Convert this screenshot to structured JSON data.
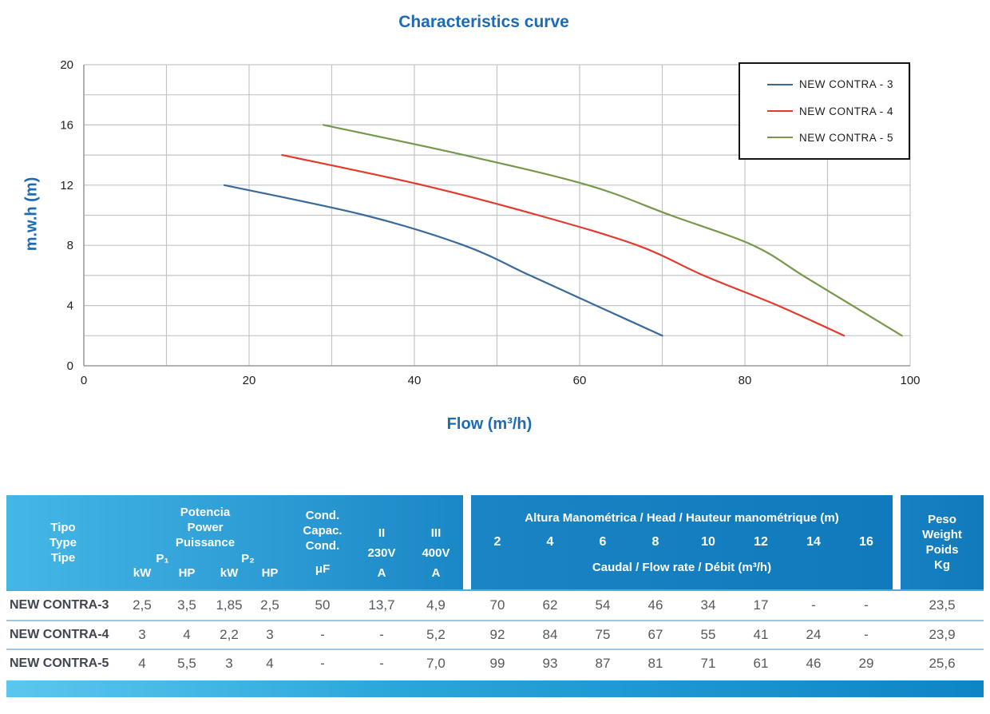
{
  "chart_data": {
    "type": "line",
    "title": "Characteristics curve",
    "xlabel": "Flow (m³/h)",
    "ylabel": "m.w.h (m)",
    "xlim": [
      0,
      100
    ],
    "ylim": [
      0,
      20
    ],
    "x_ticks": [
      0,
      20,
      40,
      60,
      80,
      100
    ],
    "y_ticks": [
      0,
      4,
      8,
      12,
      16,
      20
    ],
    "x_grid_step": 10,
    "y_grid_step": 2,
    "grid": true,
    "legend_position": "top-right",
    "grid_color": "#c2c5c7",
    "axis_color": "#9aa0a3",
    "series": [
      {
        "name": "NEW CONTRA - 3",
        "color": "#3a6a9b",
        "points": [
          [
            17,
            12
          ],
          [
            34,
            10
          ],
          [
            46,
            8
          ],
          [
            54,
            6
          ],
          [
            62,
            4
          ],
          [
            70,
            2
          ]
        ]
      },
      {
        "name": "NEW CONTRA - 4",
        "color": "#e23b2e",
        "points": [
          [
            24,
            14
          ],
          [
            41,
            12
          ],
          [
            55,
            10
          ],
          [
            67,
            8
          ],
          [
            75,
            6
          ],
          [
            84,
            4
          ],
          [
            92,
            2
          ]
        ]
      },
      {
        "name": "NEW CONTRA - 5",
        "color": "#75984a",
        "points": [
          [
            29,
            16
          ],
          [
            46,
            14
          ],
          [
            61,
            12
          ],
          [
            71,
            10
          ],
          [
            81,
            8
          ],
          [
            87,
            6
          ],
          [
            93,
            4
          ],
          [
            99,
            2
          ]
        ]
      }
    ]
  },
  "table": {
    "col_type": {
      "lines": [
        "Tipo",
        "Type",
        "Tipe"
      ]
    },
    "power": {
      "title_lines": [
        "Potencia",
        "Power",
        "Puissance"
      ],
      "p1": "P₁",
      "p2": "P₂",
      "units": [
        "kW",
        "HP",
        "kW",
        "HP"
      ]
    },
    "cond": {
      "title_lines": [
        "Cond.",
        "Capac.",
        "Cond."
      ],
      "unit": "μF"
    },
    "phase2": {
      "lines": [
        "II",
        "230V",
        "A"
      ]
    },
    "phase3": {
      "lines": [
        "III",
        "400V",
        "A"
      ]
    },
    "head": {
      "title": "Altura Manométrica / Head / Hauteur manométrique (m)",
      "values": [
        "2",
        "4",
        "6",
        "8",
        "10",
        "12",
        "14",
        "16"
      ],
      "subtitle": "Caudal / Flow rate / Débit (m³/h)"
    },
    "weight": {
      "lines": [
        "Peso",
        "Weight",
        "Poids",
        "Kg"
      ]
    },
    "rows": [
      {
        "type": "NEW CONTRA-3",
        "values": [
          "2,5",
          "3,5",
          "1,85",
          "2,5",
          "50",
          "13,7",
          "4,9"
        ],
        "heads": [
          "70",
          "62",
          "54",
          "46",
          "34",
          "17",
          "-",
          "-"
        ],
        "weight": "23,5"
      },
      {
        "type": "NEW CONTRA-4",
        "values": [
          "3",
          "4",
          "2,2",
          "3",
          "-",
          "-",
          "5,2"
        ],
        "heads": [
          "92",
          "84",
          "75",
          "67",
          "55",
          "41",
          "24",
          "-"
        ],
        "weight": "23,9"
      },
      {
        "type": "NEW CONTRA-5",
        "values": [
          "4",
          "5,5",
          "3",
          "4",
          "-",
          "-",
          "7,0"
        ],
        "heads": [
          "99",
          "93",
          "87",
          "81",
          "71",
          "61",
          "46",
          "29"
        ],
        "weight": "25,6"
      }
    ]
  },
  "colors": {
    "title_blue": "#1d6bb4",
    "header_gradient_left": "#45b7e7",
    "header_gradient_right": "#0f7abc",
    "row_separator": "#9fc8e0",
    "bottom_bar_left": "#5bc7ee",
    "bottom_bar_right": "#0e85c5"
  }
}
